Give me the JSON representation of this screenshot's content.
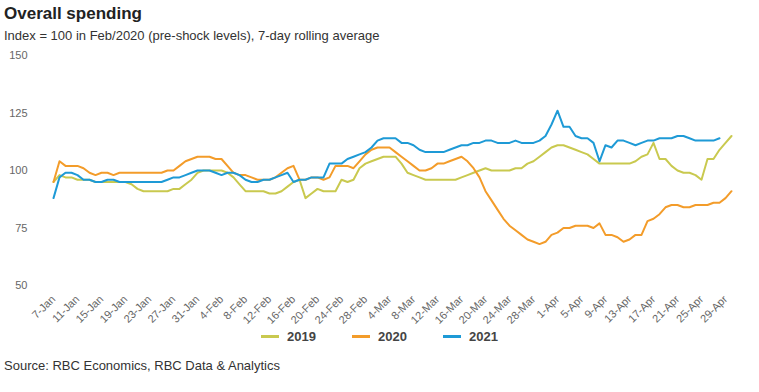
{
  "chart_data": {
    "type": "line",
    "title": "Overall spending",
    "subtitle": "Index = 100 in Feb/2020 (pre-shock levels), 7-day rolling average",
    "caption": "Source: RBC Economics, RBC Data & Analytics",
    "categories": [
      "7-Jan",
      null,
      null,
      null,
      "11-Jan",
      null,
      null,
      null,
      "15-Jan",
      null,
      null,
      null,
      "19-Jan",
      null,
      null,
      null,
      "23-Jan",
      null,
      null,
      null,
      "27-Jan",
      null,
      null,
      null,
      "31-Jan",
      null,
      null,
      null,
      "4-Feb",
      null,
      null,
      null,
      "8-Feb",
      null,
      null,
      null,
      "12-Feb",
      null,
      null,
      null,
      "16-Feb",
      null,
      null,
      null,
      "20-Feb",
      null,
      null,
      null,
      "24-Feb",
      null,
      null,
      null,
      "28-Feb",
      null,
      null,
      null,
      "4-Mar",
      null,
      null,
      null,
      "8-Mar",
      null,
      null,
      null,
      "12-Mar",
      null,
      null,
      null,
      "16-Mar",
      null,
      null,
      null,
      "20-Mar",
      null,
      null,
      null,
      "24-Mar",
      null,
      null,
      null,
      "28-Mar",
      null,
      null,
      null,
      "1-Apr",
      null,
      null,
      null,
      "5-Apr",
      null,
      null,
      null,
      "9-Apr",
      null,
      null,
      null,
      "13-Apr",
      null,
      null,
      null,
      "17-Apr",
      null,
      null,
      null,
      "21-Apr",
      null,
      null,
      null,
      "25-Apr",
      null,
      null,
      null,
      "29-Apr",
      null
    ],
    "series": [
      {
        "name": "2019",
        "color": "#c9c94f",
        "values": [
          95,
          98,
          97,
          97,
          96,
          96,
          96,
          95,
          95,
          95,
          95,
          95,
          95,
          94,
          92,
          91,
          91,
          91,
          91,
          91,
          92,
          92,
          94,
          96,
          99,
          100,
          100,
          100,
          100,
          99,
          97,
          94,
          91,
          91,
          91,
          91,
          90,
          90,
          91,
          93,
          95,
          96,
          88,
          90,
          92,
          91,
          91,
          91,
          96,
          95,
          96,
          101,
          103,
          104,
          105,
          106,
          106,
          106,
          103,
          99,
          98,
          97,
          96,
          96,
          96,
          96,
          96,
          96,
          97,
          98,
          99,
          100,
          101,
          100,
          100,
          100,
          100,
          101,
          101,
          103,
          104,
          106,
          108,
          110,
          111,
          111,
          110,
          109,
          108,
          107,
          105,
          103,
          103,
          103,
          103,
          103,
          103,
          104,
          106,
          107,
          112,
          105,
          105,
          102,
          100,
          99,
          99,
          98,
          96,
          105,
          105,
          109,
          112,
          115
        ]
      },
      {
        "name": "2020",
        "color": "#f39c2a",
        "values": [
          95,
          104,
          102,
          102,
          102,
          101,
          99,
          98,
          99,
          99,
          98,
          99,
          99,
          99,
          99,
          99,
          99,
          99,
          99,
          100,
          100,
          102,
          104,
          105,
          106,
          106,
          106,
          105,
          105,
          102,
          99,
          98,
          98,
          97,
          96,
          96,
          96,
          97,
          99,
          101,
          102,
          96,
          96,
          97,
          97,
          96,
          97,
          102,
          102,
          102,
          101,
          104,
          107,
          109,
          110,
          110,
          110,
          108,
          106,
          104,
          102,
          100,
          100,
          101,
          103,
          103,
          104,
          105,
          106,
          104,
          101,
          97,
          91,
          87,
          83,
          79,
          76,
          74,
          72,
          70,
          69,
          68,
          69,
          72,
          73,
          75,
          75,
          76,
          76,
          76,
          75,
          77,
          72,
          72,
          71,
          69,
          70,
          72,
          72,
          78,
          79,
          81,
          84,
          85,
          85,
          84,
          84,
          85,
          85,
          85,
          86,
          86,
          88,
          91
        ]
      },
      {
        "name": "2021",
        "color": "#1e9ad6",
        "values": [
          88,
          97,
          99,
          99,
          98,
          96,
          96,
          95,
          95,
          96,
          96,
          95,
          95,
          95,
          95,
          95,
          95,
          95,
          95,
          96,
          97,
          97,
          98,
          99,
          100,
          100,
          100,
          99,
          98,
          99,
          99,
          98,
          96,
          95,
          95,
          96,
          96,
          97,
          98,
          99,
          95,
          96,
          96,
          97,
          97,
          97,
          103,
          103,
          103,
          105,
          106,
          107,
          108,
          110,
          113,
          114,
          114,
          114,
          112,
          112,
          111,
          109,
          108,
          108,
          108,
          108,
          109,
          110,
          111,
          111,
          112,
          112,
          113,
          113,
          112,
          112,
          112,
          113,
          112,
          112,
          112,
          113,
          115,
          120,
          126,
          119,
          119,
          115,
          114,
          114,
          112,
          104,
          111,
          110,
          113,
          113,
          112,
          111,
          112,
          113,
          113,
          114,
          114,
          114,
          115,
          115,
          114,
          113,
          113,
          113,
          113,
          114,
          null,
          null
        ]
      }
    ],
    "ylim": [
      50,
      150
    ],
    "yticks": [
      50,
      75,
      100,
      125,
      150
    ],
    "grid": false,
    "legend": "bottom"
  }
}
